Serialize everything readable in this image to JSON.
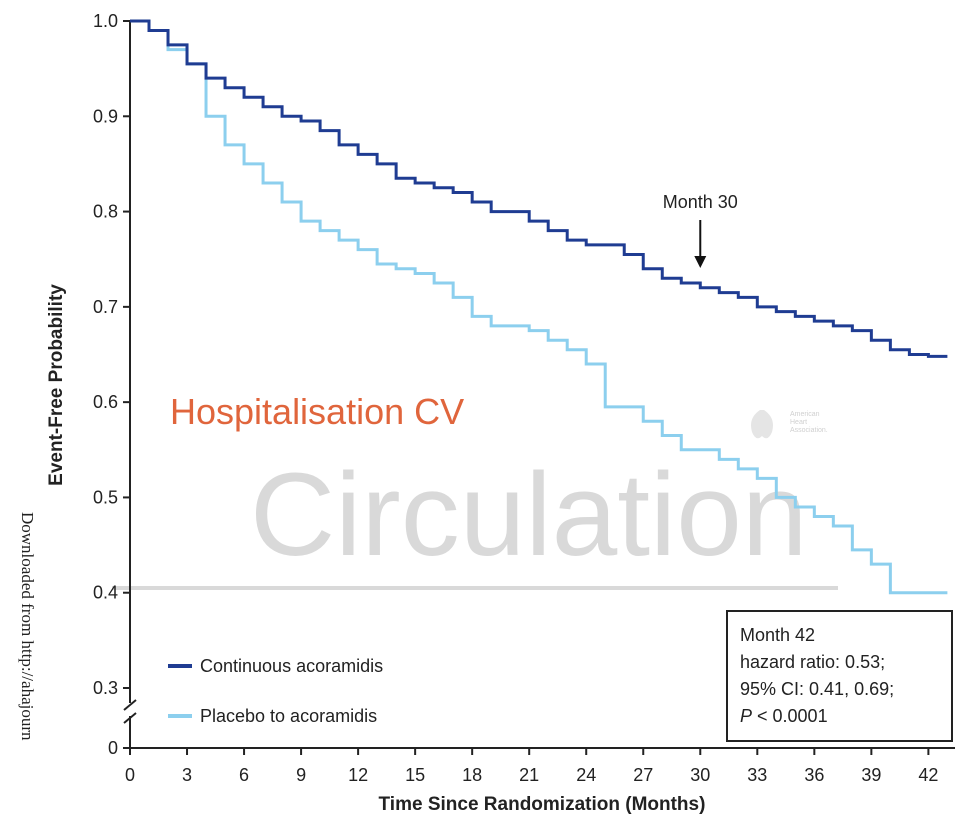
{
  "chart_data": {
    "type": "step",
    "x_label": "Time Since Randomization (Months)",
    "y_label": "Event-Free Probability",
    "x": [
      0,
      1,
      2,
      3,
      4,
      5,
      6,
      7,
      8,
      9,
      10,
      11,
      12,
      13,
      14,
      15,
      16,
      17,
      18,
      19,
      20,
      21,
      22,
      23,
      24,
      25,
      26,
      27,
      28,
      29,
      30,
      31,
      32,
      33,
      34,
      35,
      36,
      37,
      38,
      39,
      40,
      41,
      42,
      43
    ],
    "series": [
      {
        "name": "Continuous acoramidis",
        "color": "#1f3c92",
        "values": [
          1.0,
          0.99,
          0.975,
          0.955,
          0.94,
          0.93,
          0.92,
          0.91,
          0.9,
          0.895,
          0.885,
          0.87,
          0.86,
          0.85,
          0.835,
          0.83,
          0.825,
          0.82,
          0.81,
          0.8,
          0.8,
          0.79,
          0.78,
          0.77,
          0.765,
          0.765,
          0.755,
          0.74,
          0.73,
          0.725,
          0.72,
          0.715,
          0.71,
          0.7,
          0.695,
          0.69,
          0.685,
          0.68,
          0.675,
          0.665,
          0.655,
          0.65,
          0.648,
          0.648
        ]
      },
      {
        "name": "Placebo to acoramidis",
        "color": "#8ccfee",
        "values": [
          1.0,
          0.99,
          0.97,
          0.955,
          0.9,
          0.87,
          0.85,
          0.83,
          0.81,
          0.79,
          0.78,
          0.77,
          0.76,
          0.745,
          0.74,
          0.735,
          0.725,
          0.71,
          0.69,
          0.68,
          0.68,
          0.675,
          0.665,
          0.655,
          0.64,
          0.595,
          0.595,
          0.58,
          0.565,
          0.55,
          0.55,
          0.54,
          0.53,
          0.52,
          0.5,
          0.49,
          0.48,
          0.47,
          0.445,
          0.43,
          0.4,
          0.4,
          0.4,
          0.4
        ]
      }
    ],
    "xlim": [
      0,
      43.4
    ],
    "xticks": [
      0,
      3,
      6,
      9,
      12,
      15,
      18,
      21,
      24,
      27,
      30,
      33,
      36,
      39,
      42
    ],
    "ylim": [
      0,
      1.0
    ],
    "yticks": [
      0,
      0.3,
      0.4,
      0.5,
      0.6,
      0.7,
      0.8,
      0.9,
      {
        "value": 1.0,
        "label": "1.0"
      }
    ],
    "y_axis_break": true,
    "legend": "lower left",
    "annotations": [
      {
        "text": "Month 30",
        "x": 30
      }
    ],
    "stats_box": {
      "lines": [
        "Month 42",
        "hazard ratio: 0.53;",
        "95% CI: 0.41, 0.69;"
      ],
      "p_symbol": "P",
      "p_text": "< 0.0001"
    },
    "overlay_title": "Hospitalisation CV",
    "watermark": "Circulation",
    "logo_text": [
      "American",
      "Heart",
      "Association."
    ],
    "side_note": "Downloaded from http://ahajourn"
  }
}
